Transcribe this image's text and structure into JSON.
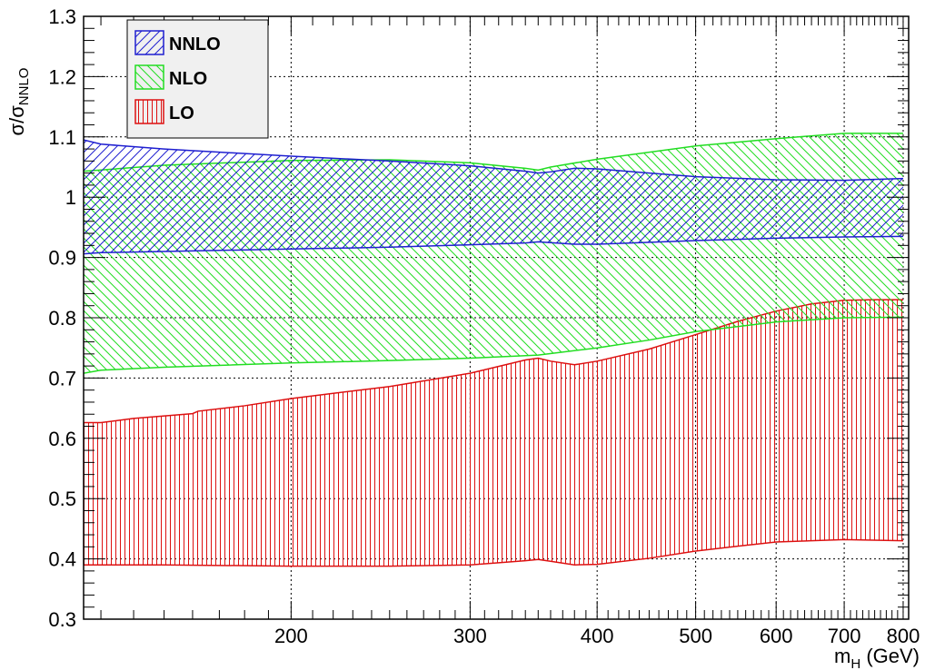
{
  "chart_data": {
    "type": "area",
    "x_scale": "log",
    "xlim": [
      125,
      810
    ],
    "ylim": [
      0.3,
      1.3
    ],
    "grid": true,
    "legend_position": "top-left",
    "xlabel": "m_H (GeV)",
    "xlabel_main": "m",
    "xlabel_sub": "H",
    "xlabel_unit": " (GeV)",
    "ylabel": "σ/σ_NNLO",
    "ylabel_main": "σ/σ",
    "ylabel_sub": "NNLO",
    "x_ticks": [
      200,
      300,
      400,
      500,
      600,
      700,
      800
    ],
    "x_tick_labels": [
      "200",
      "300",
      "400",
      "500",
      "600",
      "700",
      "800"
    ],
    "y_ticks": [
      0.3,
      0.4,
      0.5,
      0.6,
      0.7,
      0.8,
      0.9,
      1.0,
      1.1,
      1.2,
      1.3
    ],
    "y_tick_labels": [
      "0.3",
      "0.4",
      "0.5",
      "0.6",
      "0.7",
      "0.8",
      "0.9",
      "1",
      "1.1",
      "1.2",
      "1.3"
    ],
    "colors": {
      "NNLO": "#1f1fd0",
      "NLO": "#22dd22",
      "LO": "#dd1111"
    },
    "series": [
      {
        "name": "LO",
        "upper": [
          [
            125,
            0.626
          ],
          [
            130,
            0.626
          ],
          [
            140,
            0.633
          ],
          [
            160,
            0.641
          ],
          [
            162,
            0.645
          ],
          [
            180,
            0.654
          ],
          [
            200,
            0.666
          ],
          [
            250,
            0.686
          ],
          [
            300,
            0.708
          ],
          [
            340,
            0.73
          ],
          [
            350,
            0.733
          ],
          [
            360,
            0.728
          ],
          [
            380,
            0.722
          ],
          [
            400,
            0.728
          ],
          [
            450,
            0.748
          ],
          [
            500,
            0.772
          ],
          [
            550,
            0.794
          ],
          [
            600,
            0.811
          ],
          [
            650,
            0.823
          ],
          [
            700,
            0.829
          ],
          [
            750,
            0.83
          ],
          [
            800,
            0.83
          ]
        ],
        "lower": [
          [
            125,
            0.39
          ],
          [
            150,
            0.39
          ],
          [
            200,
            0.388
          ],
          [
            250,
            0.388
          ],
          [
            300,
            0.39
          ],
          [
            340,
            0.397
          ],
          [
            350,
            0.399
          ],
          [
            360,
            0.396
          ],
          [
            380,
            0.39
          ],
          [
            400,
            0.391
          ],
          [
            450,
            0.401
          ],
          [
            500,
            0.413
          ],
          [
            550,
            0.421
          ],
          [
            600,
            0.428
          ],
          [
            700,
            0.432
          ],
          [
            800,
            0.43
          ]
        ]
      },
      {
        "name": "NLO",
        "upper": [
          [
            125,
            1.043
          ],
          [
            150,
            1.053
          ],
          [
            200,
            1.061
          ],
          [
            250,
            1.062
          ],
          [
            300,
            1.057
          ],
          [
            340,
            1.048
          ],
          [
            350,
            1.045
          ],
          [
            360,
            1.05
          ],
          [
            400,
            1.063
          ],
          [
            500,
            1.085
          ],
          [
            600,
            1.097
          ],
          [
            700,
            1.106
          ],
          [
            800,
            1.106
          ]
        ],
        "lower": [
          [
            125,
            0.708
          ],
          [
            130,
            0.713
          ],
          [
            150,
            0.718
          ],
          [
            200,
            0.725
          ],
          [
            250,
            0.729
          ],
          [
            300,
            0.733
          ],
          [
            350,
            0.738
          ],
          [
            400,
            0.75
          ],
          [
            450,
            0.763
          ],
          [
            500,
            0.777
          ],
          [
            600,
            0.793
          ],
          [
            700,
            0.8
          ],
          [
            800,
            0.801
          ]
        ]
      },
      {
        "name": "NNLO",
        "upper": [
          [
            125,
            1.095
          ],
          [
            130,
            1.088
          ],
          [
            150,
            1.08
          ],
          [
            200,
            1.068
          ],
          [
            250,
            1.06
          ],
          [
            300,
            1.052
          ],
          [
            340,
            1.043
          ],
          [
            350,
            1.04
          ],
          [
            360,
            1.042
          ],
          [
            380,
            1.048
          ],
          [
            400,
            1.047
          ],
          [
            450,
            1.04
          ],
          [
            500,
            1.034
          ],
          [
            600,
            1.029
          ],
          [
            700,
            1.028
          ],
          [
            800,
            1.031
          ]
        ],
        "lower": [
          [
            125,
            0.906
          ],
          [
            130,
            0.908
          ],
          [
            150,
            0.91
          ],
          [
            200,
            0.914
          ],
          [
            250,
            0.917
          ],
          [
            300,
            0.921
          ],
          [
            340,
            0.924
          ],
          [
            350,
            0.926
          ],
          [
            380,
            0.922
          ],
          [
            400,
            0.922
          ],
          [
            500,
            0.928
          ],
          [
            600,
            0.932
          ],
          [
            700,
            0.934
          ],
          [
            800,
            0.935
          ]
        ]
      }
    ],
    "legend": [
      {
        "name": "NNLO",
        "label": "NNLO"
      },
      {
        "name": "NLO",
        "label": "NLO"
      },
      {
        "name": "LO",
        "label": "LO"
      }
    ]
  }
}
